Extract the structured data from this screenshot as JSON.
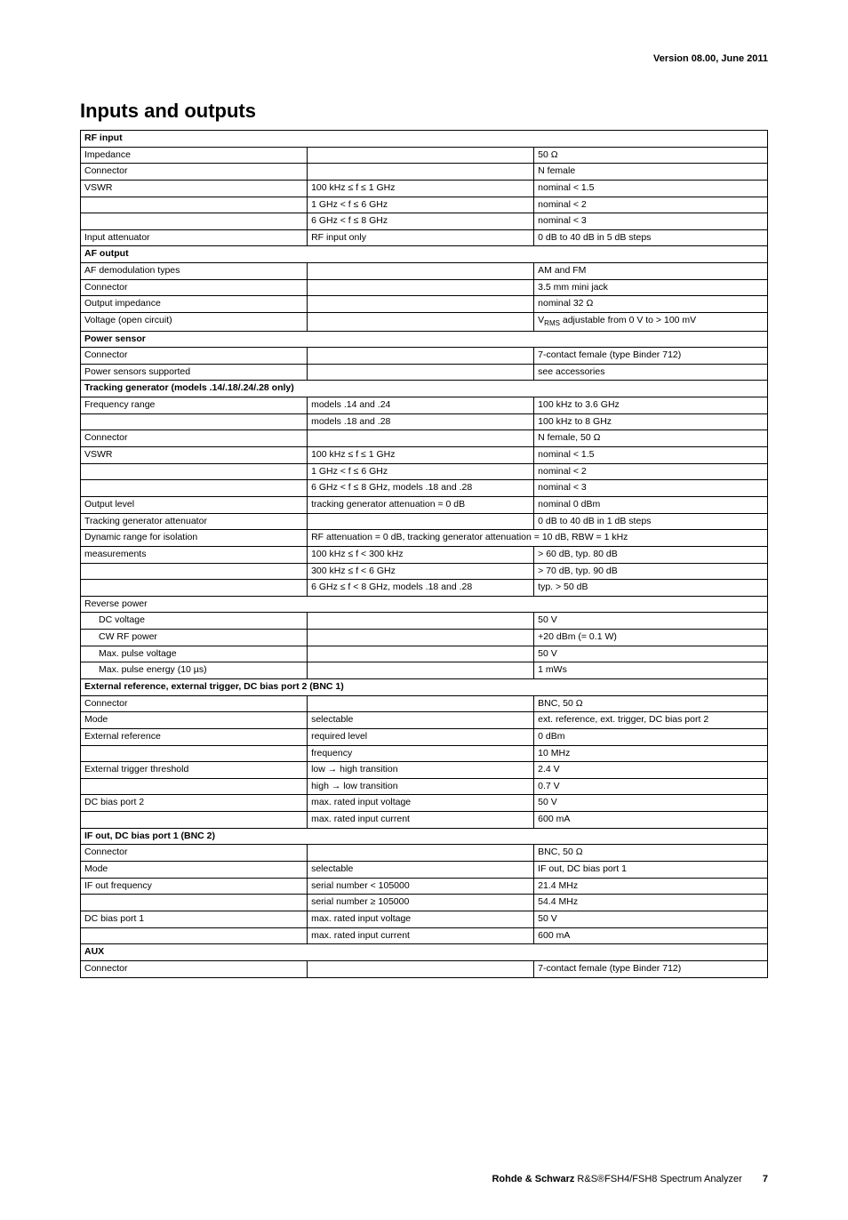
{
  "header": {
    "version": "Version 08.00, June 2011"
  },
  "title": "Inputs and outputs",
  "sections": [
    {
      "type": "header",
      "label": "RF input"
    },
    {
      "type": "row",
      "c1": "Impedance",
      "c2": "",
      "c3": "50 Ω"
    },
    {
      "type": "row",
      "c1": "Connector",
      "c2": "",
      "c3": "N female"
    },
    {
      "type": "row",
      "c1": "VSWR",
      "c2": "100 kHz ≤ f ≤ 1 GHz",
      "c3": "nominal < 1.5"
    },
    {
      "type": "row",
      "c1": "",
      "c2": "1 GHz < f ≤ 6 GHz",
      "c3": "nominal < 2"
    },
    {
      "type": "row",
      "c1": "",
      "c2": "6 GHz < f ≤ 8 GHz",
      "c3": "nominal < 3"
    },
    {
      "type": "row",
      "c1": "Input attenuator",
      "c2": "RF input only",
      "c3": "0 dB to 40 dB in 5 dB steps"
    },
    {
      "type": "header",
      "label": "AF output"
    },
    {
      "type": "row",
      "c1": "AF demodulation types",
      "c2": "",
      "c3": "AM and FM"
    },
    {
      "type": "row",
      "c1": "Connector",
      "c2": "",
      "c3": "3.5 mm mini jack"
    },
    {
      "type": "row",
      "c1": "Output impedance",
      "c2": "",
      "c3": "nominal 32 Ω"
    },
    {
      "type": "row-html",
      "c1": "Voltage (open circuit)",
      "c2": "",
      "c3_html": "V<sub>RMS</sub> adjustable from 0 V to > 100 mV"
    },
    {
      "type": "header",
      "label": "Power sensor"
    },
    {
      "type": "row",
      "c1": "Connector",
      "c2": "",
      "c3": "7-contact female (type Binder 712)"
    },
    {
      "type": "row",
      "c1": "Power sensors supported",
      "c2": "",
      "c3": "see accessories"
    },
    {
      "type": "header",
      "label": "Tracking generator (models .14/.18/.24/.28 only)"
    },
    {
      "type": "row",
      "c1": "Frequency range",
      "c2": "models .14 and .24",
      "c3": "100 kHz to 3.6 GHz"
    },
    {
      "type": "row",
      "c1": "",
      "c2": "models .18 and .28",
      "c3": "100 kHz to 8 GHz"
    },
    {
      "type": "row",
      "c1": "Connector",
      "c2": "",
      "c3": "N female, 50 Ω"
    },
    {
      "type": "row",
      "c1": "VSWR",
      "c2": "100 kHz ≤ f ≤ 1 GHz",
      "c3": "nominal < 1.5"
    },
    {
      "type": "row",
      "c1": "",
      "c2": "1 GHz < f ≤ 6 GHz",
      "c3": "nominal < 2"
    },
    {
      "type": "row",
      "c1": "",
      "c2": "6 GHz < f ≤ 8 GHz, models .18 and .28",
      "c3": "nominal < 3"
    },
    {
      "type": "row",
      "c1": "Output level",
      "c2": "tracking generator attenuation = 0 dB",
      "c3": "nominal 0 dBm"
    },
    {
      "type": "row",
      "c1": "Tracking generator attenuator",
      "c2": "",
      "c3": "0 dB to 40 dB in 1 dB steps"
    },
    {
      "type": "row-span23",
      "c1": "Dynamic range for isolation",
      "c23": "RF attenuation = 0 dB, tracking generator attenuation = 10 dB, RBW = 1 kHz"
    },
    {
      "type": "row",
      "c1": "measurements",
      "c2": "100 kHz ≤ f < 300 kHz",
      "c3": "> 60 dB, typ. 80 dB"
    },
    {
      "type": "row",
      "c1": "",
      "c2": "300 kHz ≤ f < 6 GHz",
      "c3": "> 70 dB, typ. 90 dB"
    },
    {
      "type": "row",
      "c1": "",
      "c2": "6 GHz ≤ f < 8 GHz, models .18 and .28",
      "c3": "typ. > 50 dB"
    },
    {
      "type": "row-span123",
      "c123": "Reverse power"
    },
    {
      "type": "row-indent",
      "c1": "DC voltage",
      "c2": "",
      "c3": "50 V"
    },
    {
      "type": "row-indent",
      "c1": "CW RF power",
      "c2": "",
      "c3": "+20 dBm (= 0.1 W)"
    },
    {
      "type": "row-indent",
      "c1": "Max. pulse voltage",
      "c2": "",
      "c3": "50 V"
    },
    {
      "type": "row-indent",
      "c1": "Max. pulse energy (10 µs)",
      "c2": "",
      "c3": "1 mWs"
    },
    {
      "type": "header",
      "label": "External reference, external trigger, DC bias port 2 (BNC 1)"
    },
    {
      "type": "row",
      "c1": "Connector",
      "c2": "",
      "c3": "BNC, 50 Ω"
    },
    {
      "type": "row",
      "c1": "Mode",
      "c2": "selectable",
      "c3": "ext. reference, ext. trigger, DC bias port 2"
    },
    {
      "type": "row",
      "c1": "External reference",
      "c2": "required level",
      "c3": "0 dBm"
    },
    {
      "type": "row",
      "c1": "",
      "c2": "frequency",
      "c3": "10 MHz"
    },
    {
      "type": "row",
      "c1": "External trigger threshold",
      "c2": "low → high transition",
      "c3": "2.4 V"
    },
    {
      "type": "row",
      "c1": "",
      "c2": "high → low transition",
      "c3": "0.7 V"
    },
    {
      "type": "row",
      "c1": "DC bias port 2",
      "c2": "max. rated input voltage",
      "c3": "50 V"
    },
    {
      "type": "row",
      "c1": "",
      "c2": "max. rated input current",
      "c3": "600 mA"
    },
    {
      "type": "header",
      "label": "IF out, DC bias port 1 (BNC 2)"
    },
    {
      "type": "row",
      "c1": "Connector",
      "c2": "",
      "c3": "BNC, 50 Ω"
    },
    {
      "type": "row",
      "c1": "Mode",
      "c2": "selectable",
      "c3": "IF out, DC bias port 1"
    },
    {
      "type": "row",
      "c1": "IF out frequency",
      "c2": "serial number < 105000",
      "c3": "21.4 MHz"
    },
    {
      "type": "row",
      "c1": "",
      "c2": "serial number ≥ 105000",
      "c3": "54.4 MHz"
    },
    {
      "type": "row",
      "c1": "DC bias port 1",
      "c2": "max. rated input voltage",
      "c3": "50 V"
    },
    {
      "type": "row",
      "c1": "",
      "c2": "max. rated input current",
      "c3": "600 mA"
    },
    {
      "type": "header",
      "label": "AUX"
    },
    {
      "type": "row",
      "c1": "Connector",
      "c2": "",
      "c3": "7-contact female (type Binder 712)"
    }
  ],
  "footer": {
    "brand": "Rohde & Schwarz",
    "product": " R&S®FSH4/FSH8 Spectrum Analyzer",
    "page": "7"
  }
}
